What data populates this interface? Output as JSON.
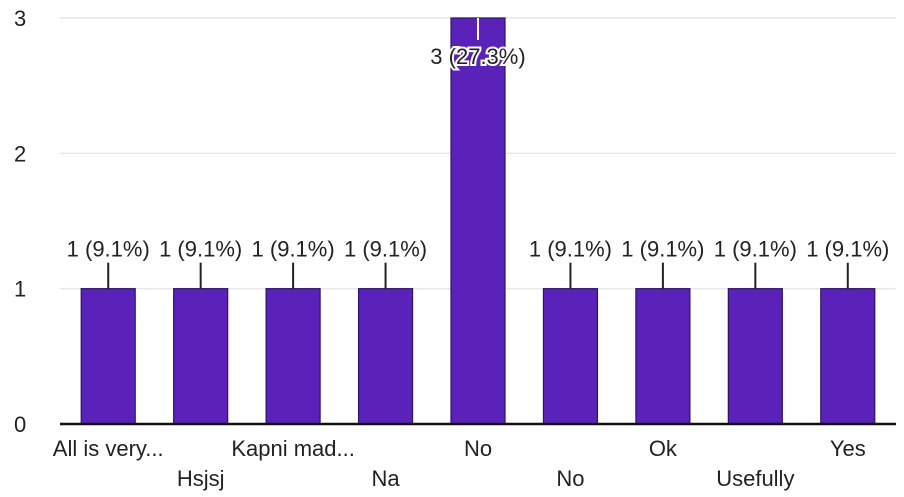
{
  "chart_data": {
    "type": "bar",
    "categories": [
      "All is very...",
      "Hsjsj",
      "Kapni mad...",
      "Na",
      "No",
      "No",
      "Ok",
      "Usefully",
      "Yes"
    ],
    "values": [
      1,
      1,
      1,
      1,
      3,
      1,
      1,
      1,
      1
    ],
    "data_labels": [
      "1 (9.1%)",
      "1 (9.1%)",
      "1 (9.1%)",
      "1 (9.1%)",
      "3 (27.3%)",
      "1 (9.1%)",
      "1 (9.1%)",
      "1 (9.1%)",
      "1 (9.1%)"
    ],
    "yticks": [
      "0",
      "1",
      "2",
      "3"
    ],
    "ylim": [
      0,
      3
    ],
    "grid": true,
    "bar_color": "#5a22b8",
    "grid_color": "#e6e6e6"
  }
}
